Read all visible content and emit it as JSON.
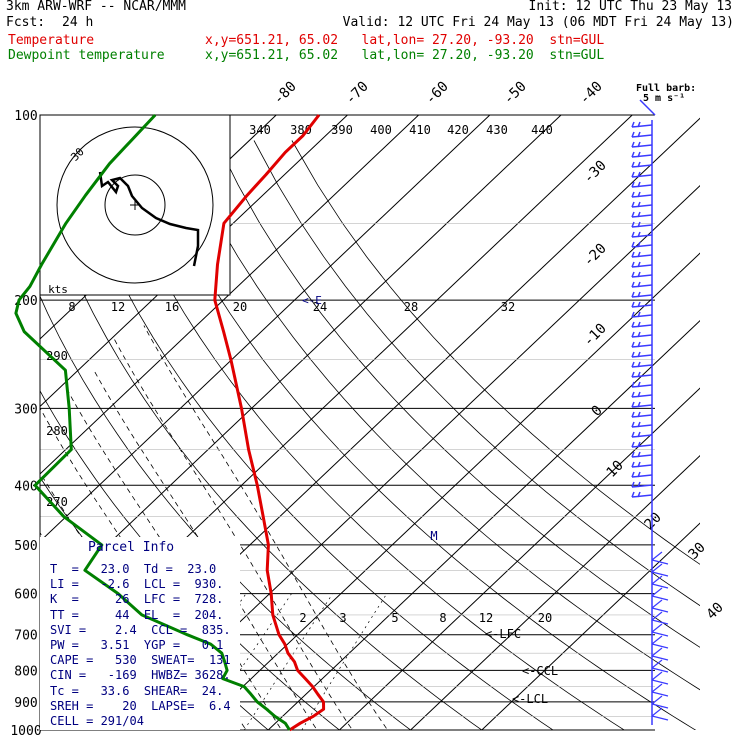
{
  "header": {
    "model": "3km ARW-WRF -- NCAR/MMM",
    "init": "Init: 12 UTC Thu 23 May 13",
    "fcst_label": "Fcst:",
    "fcst_value": "24 h",
    "valid": "Valid: 12 UTC Fri 24 May 13 (06 MDT Fri 24 May 13)"
  },
  "legend": [
    {
      "name": "Temperature",
      "info": "x,y=651.21, 65.02   lat,lon= 27.20, -93.20  stn=GUL",
      "color": "#e00000"
    },
    {
      "name": "Dewpoint temperature",
      "info": "x,y=651.21, 65.02   lat,lon= 27.20, -93.20  stn=GUL",
      "color": "#008000"
    }
  ],
  "wind_key": {
    "line1": "Full barb:",
    "line2": "5 m s⁻¹"
  },
  "hodograph": {
    "units": "kts",
    "ring_label": "30"
  },
  "parcel_info": {
    "title": "Parcel Info",
    "rows": [
      "T  =   23.0  Td =  23.0",
      "LI =   -2.6  LCL =  930.",
      "K  =     26  LFC =  728.",
      "TT =     44  EL  =  204.",
      "SVI =    2.4  CCL =  835.",
      "PW =   3.51  YGP =   0.1",
      "CAPE =   530  SWEAT=  131",
      "CIN =   -169  HWBZ= 3628.",
      "Tc =   33.6  SHEAR=  24.",
      "SREH =    20  LAPSE=  6.4",
      "CELL = 291/04"
    ]
  },
  "level_markers": [
    "M",
    "<-LFC",
    "<-CCL",
    "<-LCL",
    "<-E"
  ],
  "chart_data": {
    "type": "line",
    "title": "Skew-T log-P sounding",
    "pressure_ticks": [
      100,
      200,
      300,
      400,
      500,
      600,
      700,
      800,
      900,
      1000
    ],
    "temp_isotherm_labels": [
      "-80",
      "-70",
      "-60",
      "-50",
      "-40",
      "-30",
      "-20",
      "-10",
      "0",
      "10",
      "20",
      "30",
      "40"
    ],
    "theta_labels": [
      "340",
      "380",
      "390",
      "400",
      "410",
      "420",
      "430",
      "440"
    ],
    "dry_adiabat_labels": [
      "290",
      "280",
      "270"
    ],
    "mixing_ratio_labels": [
      "2",
      "3",
      "5",
      "8",
      "12",
      "20"
    ],
    "wetbulb_labels": [
      "8",
      "12",
      "16",
      "20",
      "24",
      "28",
      "32"
    ],
    "series": [
      {
        "name": "Temperature",
        "color": "#e00000",
        "pressure": [
          1000,
          975,
          950,
          925,
          900,
          875,
          850,
          825,
          800,
          775,
          750,
          725,
          700,
          650,
          600,
          550,
          500,
          450,
          400,
          350,
          300,
          250,
          225,
          200,
          175,
          150,
          135,
          125,
          115,
          108,
          100
        ],
        "temperature": [
          23.0,
          23.5,
          24.3,
          24.7,
          23.6,
          21.7,
          19.8,
          17.6,
          15.3,
          13.6,
          11.4,
          9.6,
          7.4,
          3.6,
          0.2,
          -3.8,
          -7.4,
          -12.3,
          -17.8,
          -24.3,
          -31.4,
          -40.1,
          -45.3,
          -51.2,
          -56.1,
          -61.3,
          -62.2,
          -62.6,
          -63.2,
          -63.2,
          -64.0
        ]
      },
      {
        "name": "Dewpoint temperature",
        "color": "#008000",
        "pressure": [
          1000,
          975,
          950,
          925,
          900,
          875,
          850,
          825,
          800,
          775,
          750,
          725,
          700,
          650,
          600,
          550,
          500,
          450,
          400,
          350,
          300,
          260,
          225,
          210,
          200,
          190,
          175,
          150,
          135,
          120,
          100
        ],
        "temperature": [
          23.0,
          21.4,
          18.9,
          16.7,
          14.3,
          12.3,
          10.2,
          6.0,
          5.4,
          3.8,
          2.1,
          -0.8,
          -5.5,
          -14.8,
          -21.3,
          -29.4,
          -30.8,
          -40.3,
          -49.0,
          -49.2,
          -55.6,
          -61.8,
          -73.3,
          -77.2,
          -78.7,
          -79.2,
          -80.8,
          -83.5,
          -84.9,
          -86.2,
          -87.0
        ]
      }
    ],
    "ylim": [
      1000,
      100
    ],
    "y_scale": "log",
    "grid": true
  }
}
